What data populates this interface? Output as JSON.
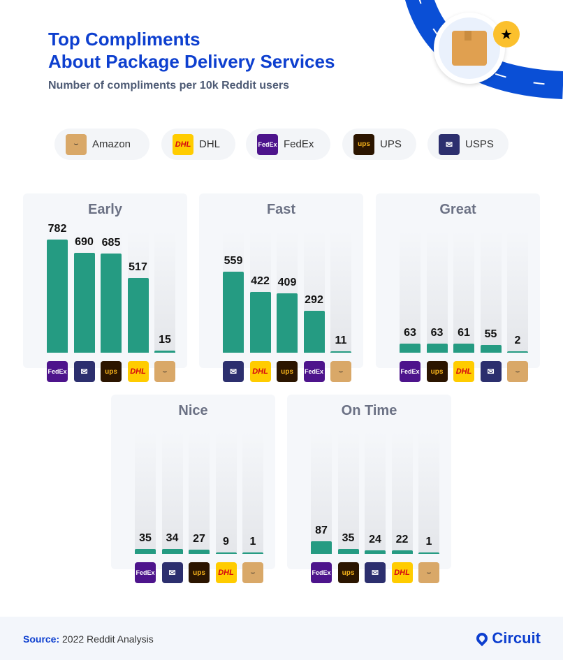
{
  "header": {
    "title_line1": "Top Compliments",
    "title_line2": "About Package Delivery Services",
    "subtitle": "Number of compliments per 10k Reddit users"
  },
  "legend": [
    {
      "key": "amazon",
      "label": "Amazon",
      "logo_text": "⌣"
    },
    {
      "key": "dhl",
      "label": "DHL",
      "logo_text": "DHL"
    },
    {
      "key": "fedex",
      "label": "FedEx",
      "logo_text": "FedEx"
    },
    {
      "key": "ups",
      "label": "UPS",
      "logo_text": "ups"
    },
    {
      "key": "usps",
      "label": "USPS",
      "logo_text": "✉"
    }
  ],
  "colors": {
    "bar": "#259b82",
    "brand": "#0d3fcf"
  },
  "chart_data": [
    {
      "type": "bar",
      "title": "Early",
      "categories": [
        "fedex",
        "usps",
        "ups",
        "dhl",
        "amazon"
      ],
      "values": [
        782,
        690,
        685,
        517,
        15
      ]
    },
    {
      "type": "bar",
      "title": "Fast",
      "categories": [
        "usps",
        "dhl",
        "ups",
        "fedex",
        "amazon"
      ],
      "values": [
        559,
        422,
        409,
        292,
        11
      ]
    },
    {
      "type": "bar",
      "title": "Great",
      "categories": [
        "fedex",
        "ups",
        "dhl",
        "usps",
        "amazon"
      ],
      "values": [
        63,
        63,
        61,
        55,
        2
      ]
    },
    {
      "type": "bar",
      "title": "Nice",
      "categories": [
        "fedex",
        "usps",
        "ups",
        "dhl",
        "amazon"
      ],
      "values": [
        35,
        34,
        27,
        9,
        1
      ]
    },
    {
      "type": "bar",
      "title": "On Time",
      "categories": [
        "fedex",
        "ups",
        "usps",
        "dhl",
        "amazon"
      ],
      "values": [
        87,
        35,
        24,
        22,
        1
      ]
    }
  ],
  "footer": {
    "source_label": "Source:",
    "source_text": "2022 Reddit Analysis",
    "brand": "Circuit"
  }
}
